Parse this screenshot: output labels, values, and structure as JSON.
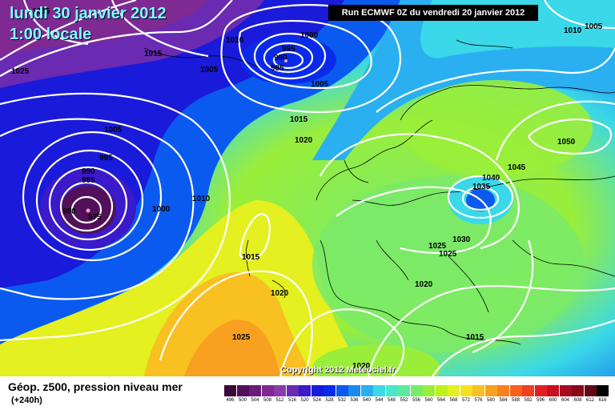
{
  "header": {
    "date": "lundi 30 janvier 2012",
    "time": "1:00 locale",
    "run": "Run ECMWF 0Z du vendredi 20 janvier 2012"
  },
  "copyright": "Copyright 2012 Meteociel.fr",
  "legend": {
    "title": "Géop. z500, pression niveau mer",
    "lead": "(+240h)"
  },
  "scale": {
    "values": [
      "496",
      "500",
      "504",
      "508",
      "512",
      "516",
      "520",
      "524",
      "528",
      "532",
      "536",
      "540",
      "544",
      "548",
      "552",
      "556",
      "560",
      "564",
      "568",
      "572",
      "576",
      "580",
      "584",
      "588",
      "592",
      "596",
      "600",
      "604",
      "608",
      "612",
      "616"
    ],
    "colors": [
      "#3a0a3a",
      "#52105a",
      "#6a1a7a",
      "#7e2a92",
      "#8a3aaa",
      "#6a2ab2",
      "#3a1aca",
      "#1a1ada",
      "#0a2aea",
      "#0a5af0",
      "#1a8af0",
      "#2ab0f0",
      "#3ad8e8",
      "#4ae8c8",
      "#5aeaa0",
      "#7aea6a",
      "#9aee3a",
      "#c0f020",
      "#e4f020",
      "#f8e020",
      "#f8c020",
      "#f8a020",
      "#f88020",
      "#f86020",
      "#f04020",
      "#e02020",
      "#c81020",
      "#a80a20",
      "#880818",
      "#600814",
      "#000000"
    ]
  },
  "isobars": {
    "labels": [
      "1035",
      "1025",
      "1015",
      "1010",
      "1005",
      "1000",
      "995",
      "990",
      "985",
      "1005",
      "1015",
      "1005",
      "995",
      "990",
      "985",
      "980",
      "975",
      "1010",
      "1000",
      "1015",
      "1020",
      "1025",
      "1020",
      "1025",
      "1010",
      "1005",
      "1050",
      "1045",
      "1040",
      "1035",
      "1030",
      "1025",
      "1020",
      "1020",
      "1015",
      "1020"
    ],
    "lows": [
      "L1",
      "L2"
    ]
  }
}
